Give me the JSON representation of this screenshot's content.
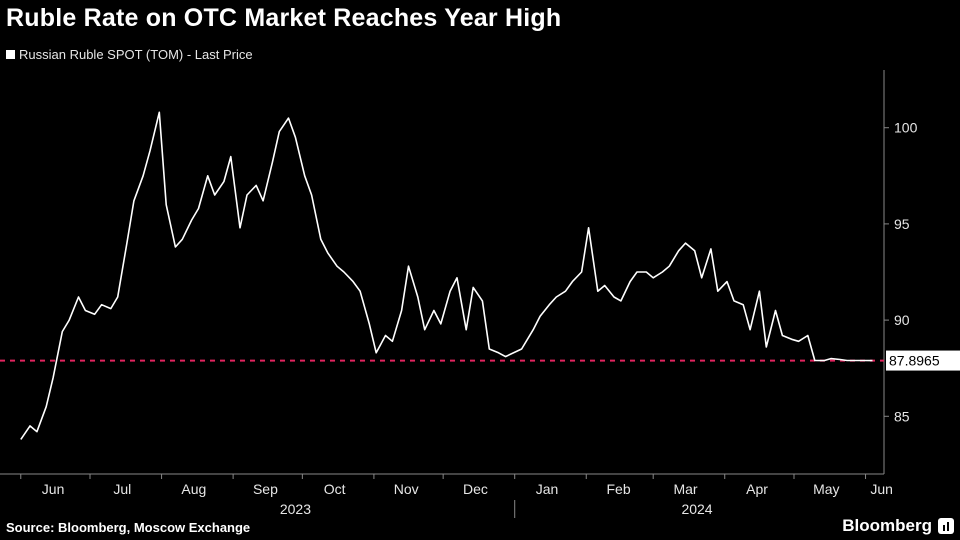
{
  "title": "Ruble Rate on OTC Market Reaches Year High",
  "legend": {
    "label": "Russian Ruble SPOT (TOM) - Last Price",
    "color": "#ffffff"
  },
  "source": "Source: Bloomberg, Moscow Exchange",
  "brand": "Bloomberg",
  "colors": {
    "background": "#000000",
    "line": "#ffffff",
    "reference": "#e0245e",
    "axis": "#888888"
  },
  "chart_data": {
    "type": "line",
    "title": "Ruble Rate on OTC Market Reaches Year High",
    "xlabel": "",
    "ylabel": "",
    "ylim": [
      82,
      103
    ],
    "y_ticks": [
      85,
      90,
      95,
      100
    ],
    "x_month_labels": [
      "Jun",
      "Jul",
      "Aug",
      "Sep",
      "Oct",
      "Nov",
      "Dec",
      "Jan",
      "Feb",
      "Mar",
      "Apr",
      "May",
      "Jun"
    ],
    "year_labels": [
      "2023",
      "2024"
    ],
    "grid": false,
    "legend_position": "top-left",
    "reference_line": {
      "value": 87.8965,
      "label": "87.8965",
      "style": "dashed"
    },
    "series": [
      {
        "name": "Russian Ruble SPOT (TOM) - Last Price",
        "x": [
          "2023-06-01",
          "2023-06-05",
          "2023-06-08",
          "2023-06-12",
          "2023-06-15",
          "2023-06-19",
          "2023-06-22",
          "2023-06-26",
          "2023-06-29",
          "2023-07-03",
          "2023-07-06",
          "2023-07-10",
          "2023-07-13",
          "2023-07-17",
          "2023-07-20",
          "2023-07-24",
          "2023-07-27",
          "2023-07-31",
          "2023-08-03",
          "2023-08-07",
          "2023-08-10",
          "2023-08-14",
          "2023-08-17",
          "2023-08-21",
          "2023-08-24",
          "2023-08-28",
          "2023-08-31",
          "2023-09-04",
          "2023-09-07",
          "2023-09-11",
          "2023-09-14",
          "2023-09-18",
          "2023-09-21",
          "2023-09-25",
          "2023-09-28",
          "2023-10-02",
          "2023-10-05",
          "2023-10-09",
          "2023-10-12",
          "2023-10-16",
          "2023-10-19",
          "2023-10-23",
          "2023-10-26",
          "2023-10-30",
          "2023-11-02",
          "2023-11-06",
          "2023-11-09",
          "2023-11-13",
          "2023-11-16",
          "2023-11-20",
          "2023-11-23",
          "2023-11-27",
          "2023-11-30",
          "2023-12-04",
          "2023-12-07",
          "2023-12-11",
          "2023-12-14",
          "2023-12-18",
          "2023-12-21",
          "2023-12-25",
          "2023-12-28",
          "2024-01-04",
          "2024-01-09",
          "2024-01-12",
          "2024-01-16",
          "2024-01-19",
          "2024-01-23",
          "2024-01-26",
          "2024-01-30",
          "2024-02-02",
          "2024-02-06",
          "2024-02-09",
          "2024-02-13",
          "2024-02-16",
          "2024-02-20",
          "2024-02-23",
          "2024-02-27",
          "2024-03-01",
          "2024-03-05",
          "2024-03-08",
          "2024-03-12",
          "2024-03-15",
          "2024-03-19",
          "2024-03-22",
          "2024-03-26",
          "2024-03-29",
          "2024-04-02",
          "2024-04-05",
          "2024-04-09",
          "2024-04-12",
          "2024-04-16",
          "2024-04-19",
          "2024-04-23",
          "2024-04-26",
          "2024-04-30",
          "2024-05-03",
          "2024-05-07",
          "2024-05-10",
          "2024-05-14",
          "2024-05-17",
          "2024-05-21",
          "2024-05-24",
          "2024-05-28",
          "2024-05-31",
          "2024-06-04"
        ],
        "y": [
          83.8,
          84.5,
          84.2,
          85.5,
          87.0,
          89.4,
          90.0,
          91.2,
          90.5,
          90.3,
          90.8,
          90.6,
          91.2,
          94.0,
          96.2,
          97.5,
          98.8,
          100.8,
          96.0,
          93.8,
          94.2,
          95.2,
          95.8,
          97.5,
          96.5,
          97.2,
          98.5,
          94.8,
          96.5,
          97.0,
          96.2,
          98.2,
          99.8,
          100.5,
          99.5,
          97.5,
          96.5,
          94.2,
          93.5,
          92.8,
          92.5,
          92.0,
          91.5,
          89.8,
          88.3,
          89.2,
          88.9,
          90.5,
          92.8,
          91.2,
          89.5,
          90.5,
          89.8,
          91.5,
          92.2,
          89.5,
          91.7,
          91.0,
          88.5,
          88.3,
          88.1,
          88.5,
          89.5,
          90.2,
          90.8,
          91.2,
          91.5,
          92.0,
          92.5,
          94.8,
          91.5,
          91.8,
          91.2,
          91.0,
          92.0,
          92.5,
          92.5,
          92.2,
          92.5,
          92.8,
          93.6,
          94.0,
          93.6,
          92.2,
          93.7,
          91.5,
          92.0,
          91.0,
          90.8,
          89.5,
          91.5,
          88.6,
          90.5,
          89.2,
          89.0,
          88.9,
          89.2,
          87.9,
          87.8965,
          88.0,
          87.95,
          87.9,
          87.9,
          87.9,
          87.8965
        ]
      }
    ]
  }
}
